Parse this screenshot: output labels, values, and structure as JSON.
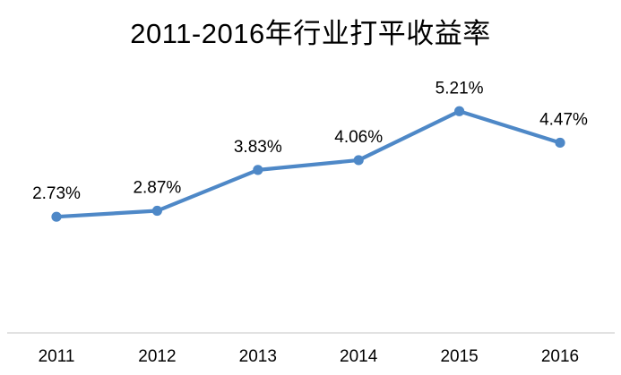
{
  "chart_data": {
    "type": "line",
    "title": "2011-2016年行业打平收益率",
    "categories": [
      "2011",
      "2012",
      "2013",
      "2014",
      "2015",
      "2016"
    ],
    "values": [
      2.73,
      2.87,
      3.83,
      4.06,
      5.21,
      4.47
    ],
    "data_labels": [
      "2.73%",
      "2.87%",
      "3.83%",
      "4.06%",
      "5.21%",
      "4.47%"
    ],
    "series_name": "行业打平收益率",
    "xlabel": "",
    "ylabel": "",
    "ylim": [
      0,
      6.2
    ],
    "grid": false,
    "legend": "none",
    "y_axis_visible": false,
    "x_axis_visible": true,
    "colors": {
      "line": "#4E88C7",
      "marker": "#4E88C7",
      "axis_line": "#D9D9D9",
      "text": "#000000",
      "background": "#FFFFFF"
    }
  }
}
